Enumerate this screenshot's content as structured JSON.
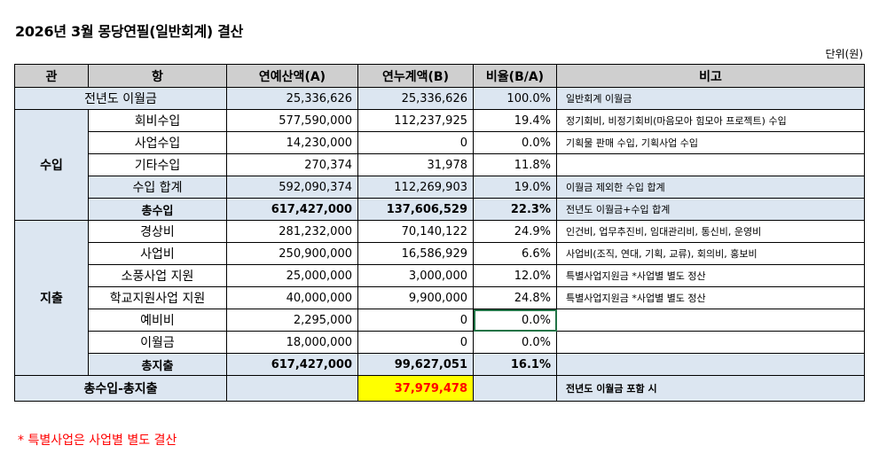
{
  "title": "2026년 3월 몽당연필(일반회계) 결산",
  "unit": "단위(원)",
  "headers": [
    "관",
    "항",
    "연예산액(A)",
    "연누계액(B)",
    "비율(B/A)",
    "비고"
  ],
  "carryover": {
    "label": "전년도 이월금",
    "budget": "25,336,626",
    "actual": "25,336,626",
    "ratio": "100.0%",
    "note": "일반회계 이월금"
  },
  "income": {
    "group": "수입",
    "rows": [
      {
        "item": "회비수입",
        "budget": "577,590,000",
        "actual": "112,237,925",
        "ratio": "19.4%",
        "note": "정기회비, 비정기회비(마음모아 힘모아 프로젝트) 수입"
      },
      {
        "item": "사업수입",
        "budget": "14,230,000",
        "actual": "0",
        "ratio": "0.0%",
        "note": "기획물 판매 수입, 기획사업 수입"
      },
      {
        "item": "기타수입",
        "budget": "270,374",
        "actual": "31,978",
        "ratio": "11.8%",
        "note": ""
      },
      {
        "item": "수입 합계",
        "budget": "592,090,374",
        "actual": "112,269,903",
        "ratio": "19.0%",
        "note": "이월금 제외한 수입 합계"
      }
    ],
    "total": {
      "item": "총수입",
      "budget": "617,427,000",
      "actual": "137,606,529",
      "ratio": "22.3%",
      "note": "전년도 이월금+수입 합계"
    }
  },
  "expense": {
    "group": "지출",
    "rows": [
      {
        "item": "경상비",
        "budget": "281,232,000",
        "actual": "70,140,122",
        "ratio": "24.9%",
        "note": "인건비, 업무추진비, 임대관리비, 통신비, 운영비"
      },
      {
        "item": "사업비",
        "budget": "250,900,000",
        "actual": "16,586,929",
        "ratio": "6.6%",
        "note": "사업비(조직, 연대, 기획, 교류), 회의비, 홍보비"
      },
      {
        "item": "소풍사업 지원",
        "budget": "25,000,000",
        "actual": "3,000,000",
        "ratio": "12.0%",
        "note": "특별사업지원금 *사업별 별도 정산"
      },
      {
        "item": "학교지원사업 지원",
        "budget": "40,000,000",
        "actual": "9,900,000",
        "ratio": "24.8%",
        "note": "특별사업지원금 *사업별 별도 정산"
      },
      {
        "item": "예비비",
        "budget": "2,295,000",
        "actual": "0",
        "ratio": "0.0%",
        "note": ""
      },
      {
        "item": "이월금",
        "budget": "18,000,000",
        "actual": "0",
        "ratio": "0.0%",
        "note": ""
      }
    ],
    "total": {
      "item": "총지출",
      "budget": "617,427,000",
      "actual": "99,627,051",
      "ratio": "16.1%",
      "note": ""
    }
  },
  "balance": {
    "label": "총수입-총지출",
    "budget": "",
    "actual": "37,979,478",
    "ratio": "",
    "note": "전년도 이월금 포함 시"
  },
  "footnote": "* 특별사업은 사업별 별도 결산"
}
